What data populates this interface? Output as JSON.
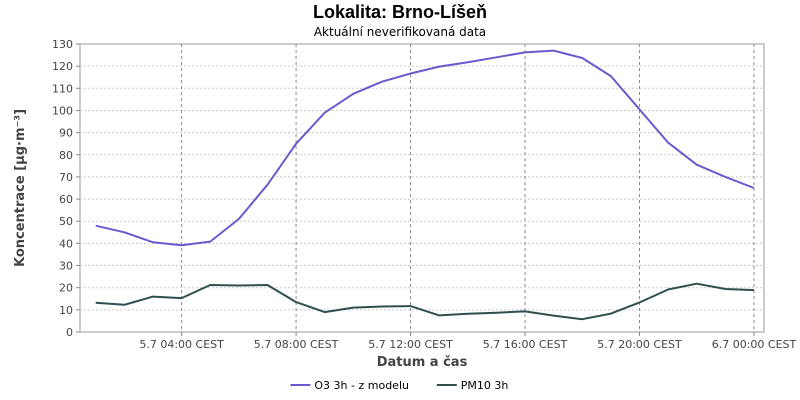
{
  "chart_data": {
    "type": "line",
    "title": "Lokalita: Brno-Líšeň",
    "subtitle": "Aktuální neverifikovaná data",
    "xlabel": "Datum a čas",
    "ylabel": "Koncentrace [µg·m⁻³]",
    "ylim": [
      0,
      130
    ],
    "yticks": [
      0,
      10,
      20,
      30,
      40,
      50,
      60,
      70,
      80,
      90,
      100,
      110,
      120,
      130
    ],
    "x_hours": [
      1,
      2,
      3,
      4,
      5,
      6,
      7,
      8,
      9,
      10,
      11,
      12,
      13,
      14,
      15,
      16,
      17,
      18,
      19,
      20,
      21,
      22,
      23,
      24
    ],
    "xlim_hours": [
      0.45,
      24.35
    ],
    "xticks": [
      {
        "hour": 4,
        "label": "5.7 04:00 CEST"
      },
      {
        "hour": 8,
        "label": "5.7 08:00 CEST"
      },
      {
        "hour": 12,
        "label": "5.7 12:00 CEST"
      },
      {
        "hour": 16,
        "label": "5.7 16:00 CEST"
      },
      {
        "hour": 20,
        "label": "5.7 20:00 CEST"
      },
      {
        "hour": 24,
        "label": "6.7 00:00 CEST"
      }
    ],
    "grid": true,
    "legend_position": "bottom",
    "series": [
      {
        "name": "O3 3h - z modelu",
        "color": "#6a5acd",
        "values": [
          48,
          45,
          40.5,
          39.2,
          40.8,
          51,
          66.5,
          85,
          99,
          107.5,
          113,
          116.7,
          119.8,
          121.8,
          124,
          126.2,
          127,
          123.7,
          115.5,
          100.5,
          85.5,
          75.5,
          70,
          65
        ]
      },
      {
        "name": "PM10 3h",
        "color": "#2f4f4f",
        "values": [
          13.2,
          12.3,
          16,
          15.3,
          21.2,
          21,
          21.2,
          13.5,
          9,
          11,
          11.5,
          11.7,
          7.5,
          8.2,
          8.7,
          9.3,
          7.4,
          5.8,
          8.3,
          13.3,
          19.2,
          21.8,
          19.4,
          18.9
        ]
      }
    ]
  }
}
